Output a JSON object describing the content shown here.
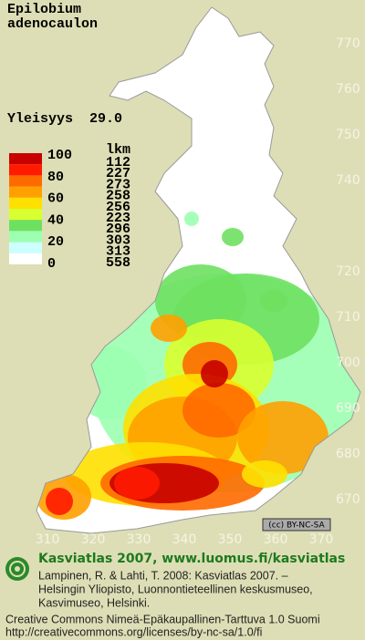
{
  "title": [
    "Epilobium",
    "adenocaulon"
  ],
  "frequency": {
    "label": "Yleisyys",
    "value": "29.0"
  },
  "legend": {
    "scale": [
      "100",
      "80",
      "60",
      "40",
      "20",
      "0"
    ],
    "count_header": "lkm",
    "counts": [
      "112",
      "227",
      "273",
      "258",
      "256",
      "223",
      "296",
      "303",
      "313",
      "558"
    ],
    "colors": [
      "#c80000",
      "#ff1a00",
      "#ff6a00",
      "#ffa000",
      "#ffe000",
      "#d8ff30",
      "#6ee060",
      "#9cffb0",
      "#ccffff",
      "#ffffff"
    ]
  },
  "grid": {
    "northing": [
      770,
      760,
      750,
      740,
      720,
      710,
      700,
      690,
      680,
      670
    ],
    "easting": [
      310,
      320,
      330,
      340,
      350,
      360,
      370
    ]
  },
  "license_badge": "(cc) BY-NC-SA",
  "footer": {
    "heading": "Kasviatlas 2007, www.luomus.fi/kasviatlas",
    "citation": [
      "Lampinen, R. & Lahti, T. 2008: Kasviatlas 2007. –",
      "Helsingin Yliopisto, Luonnontieteellinen keskusmuseo,",
      "Kasvimuseo, Helsinki."
    ],
    "license": [
      "Creative Commons Nimeä-Epäkaupallinen-Tarttuva 1.0 Suomi",
      "http://creativecommons.org/licenses/by-nc-sa/1.0/fi"
    ]
  }
}
